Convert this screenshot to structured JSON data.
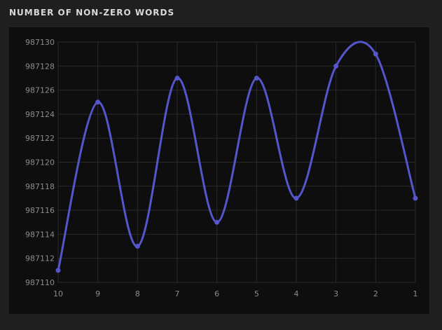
{
  "panel": {
    "title": "NUMBER OF NON-ZERO WORDS"
  },
  "colors": {
    "background": "#1f1f1f",
    "chart_background": "#0e0e0e",
    "grid": "#2a2a2a",
    "line": "#5555cc",
    "tick_text": "#8c8c8c"
  },
  "chart_data": {
    "type": "line",
    "title": "NUMBER OF NON-ZERO WORDS",
    "xlabel": "",
    "ylabel": "",
    "x": [
      "10",
      "9",
      "8",
      "7",
      "6",
      "5",
      "4",
      "3",
      "2",
      "1"
    ],
    "series": [
      {
        "values": [
          987111,
          987125,
          987113,
          987127,
          987115,
          987127,
          987117,
          987128,
          987129,
          987117
        ]
      }
    ],
    "ylim": [
      987110,
      987130
    ],
    "yticks": [
      987110,
      987112,
      987114,
      987116,
      987118,
      987120,
      987122,
      987124,
      987126,
      987128,
      987130
    ],
    "smooth": true,
    "markers": true,
    "grid": true,
    "legend": "none"
  }
}
